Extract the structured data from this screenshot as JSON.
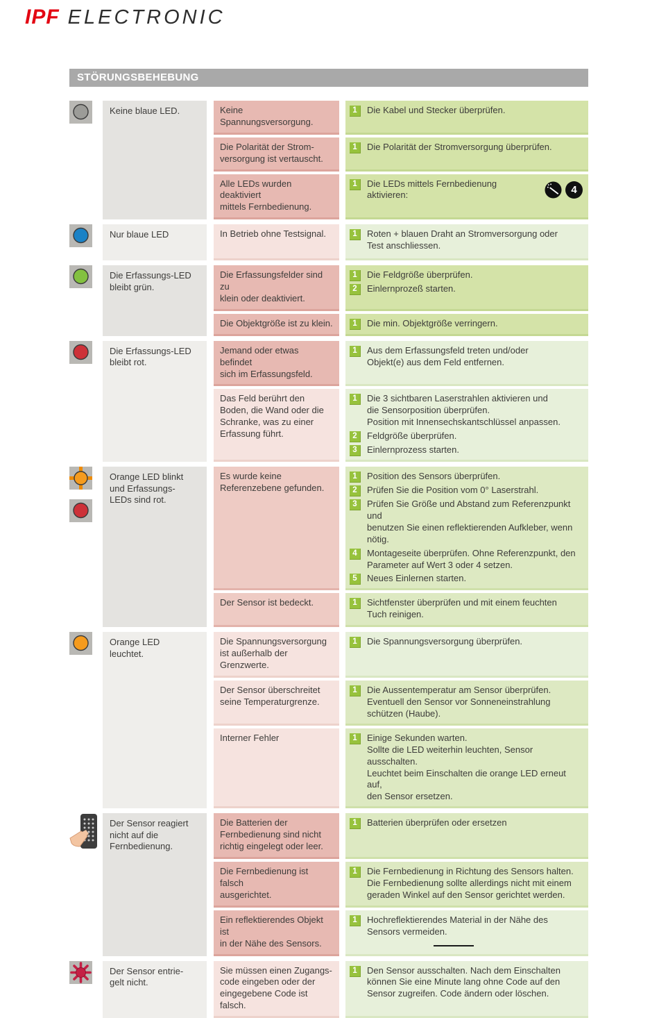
{
  "logo": {
    "brand": "IPF",
    "name": "ELECTRONIC"
  },
  "title": "STÖRUNGSBEHEBUNG",
  "icon_labels": {
    "number_badge": "4"
  },
  "colors": {
    "brand_red": "#e30613",
    "title_bar": "#a9a9a9",
    "step_badge_green": "#97c23d",
    "cause_pink": "#e7b9b2",
    "solution_green": "#d4e3a8"
  },
  "rows": [
    {
      "icons": [
        "gray-led"
      ],
      "symptom": "Keine blaue LED.",
      "items": [
        {
          "cause": "Keine Spannungsversorgung.",
          "cshade": "dark",
          "sshade": "dark",
          "steps": [
            {
              "n": "1",
              "text": "Die Kabel und Stecker überprüfen."
            }
          ]
        },
        {
          "cause": "Die Polarität der Strom-\nversorgung ist vertauscht.",
          "cshade": "dark",
          "sshade": "dark",
          "steps": [
            {
              "n": "1",
              "text": "Die Polarität der Stromversorgung überprüfen."
            }
          ]
        },
        {
          "cause": "Alle LEDs wurden deaktiviert\nmittels Fernbedienung.",
          "cshade": "dark",
          "sshade": "dark",
          "steps": [
            {
              "n": "1",
              "text": "Die LEDs mittels Fernbedienung aktivieren:",
              "icons": [
                "remote-wand",
                "number-4"
              ]
            }
          ]
        }
      ]
    },
    {
      "icons": [
        "blue-led"
      ],
      "symptom": "Nur blaue LED",
      "items": [
        {
          "cause": "In Betrieb ohne Testsignal.",
          "cshade": "light",
          "sshade": "light",
          "steps": [
            {
              "n": "1",
              "text": "Roten + blauen Draht an Stromversorgung oder\nTest anschliessen."
            }
          ]
        }
      ]
    },
    {
      "icons": [
        "green-led"
      ],
      "symptom": "Die Erfassungs-LED\nbleibt grün.",
      "items": [
        {
          "cause": "Die Erfassungsfelder sind zu\nklein oder deaktiviert.",
          "cshade": "dark",
          "sshade": "dark",
          "steps": [
            {
              "n": "1",
              "text": "Die Feldgröße überprüfen."
            },
            {
              "n": "2",
              "text": "Einlernprozeß starten."
            }
          ]
        },
        {
          "cause": "Die Objektgröße ist zu klein.",
          "cshade": "dark",
          "sshade": "dark",
          "steps": [
            {
              "n": "1",
              "text": "Die min. Objektgröße verringern."
            }
          ]
        }
      ]
    },
    {
      "icons": [
        "red-led"
      ],
      "symptom": "Die Erfassungs-LED\nbleibt rot.",
      "items": [
        {
          "cause": "Jemand oder etwas befindet\nsich im Erfassungsfeld.",
          "cshade": "dark",
          "sshade": "light",
          "steps": [
            {
              "n": "1",
              "text": "Aus dem Erfassungsfeld treten und/oder\nObjekt(e) aus dem Feld entfernen."
            }
          ]
        },
        {
          "cause": "Das Feld berührt den\nBoden, die Wand oder die\nSchranke, was zu einer\nErfassung führt.",
          "cshade": "light",
          "sshade": "light",
          "steps": [
            {
              "n": "1",
              "text": "Die 3 sichtbaren Laserstrahlen aktivieren und\ndie Sensorposition überprüfen.\nPosition mit Innensechskantschlüssel anpassen."
            },
            {
              "n": "2",
              "text": "Feldgröße überprüfen."
            },
            {
              "n": "3",
              "text": "Einlernprozess starten."
            }
          ]
        }
      ]
    },
    {
      "icons": [
        "orange-blink-led",
        "red-led"
      ],
      "symptom": "Orange LED blinkt\nund Erfassungs-\nLEDs sind rot.",
      "items": [
        {
          "cause": "Es wurde keine\nReferenzebene gefunden.",
          "cshade": "mid",
          "sshade": "mid",
          "steps": [
            {
              "n": "1",
              "text": "Position des Sensors überprüfen."
            },
            {
              "n": "2",
              "text": "Prüfen Sie die Position vom 0° Laserstrahl."
            },
            {
              "n": "3",
              "text": "Prüfen Sie Größe und Abstand zum Referenzpunkt und\nbenutzen Sie einen reflektierenden Aufkleber, wenn nötig."
            },
            {
              "n": "4",
              "text": "Montageseite überprüfen. Ohne Referenzpunkt, den\nParameter auf Wert 3 oder 4 setzen."
            },
            {
              "n": "5",
              "text": "Neues Einlernen starten."
            }
          ]
        },
        {
          "cause": "Der Sensor ist bedeckt.",
          "cshade": "mid",
          "sshade": "mid",
          "steps": [
            {
              "n": "1",
              "text": "Sichtfenster überprüfen und mit einem feuchten\nTuch reinigen."
            }
          ]
        }
      ]
    },
    {
      "icons": [
        "orange-led"
      ],
      "symptom": "Orange LED\nleuchtet.",
      "items": [
        {
          "cause": "Die Spannungsversorgung\nist außerhalb der Grenzwerte.",
          "cshade": "light",
          "sshade": "light",
          "steps": [
            {
              "n": "1",
              "text": "Die Spannungsversorgung überprüfen."
            }
          ]
        },
        {
          "cause": "Der Sensor überschreitet\nseine Temperaturgrenze.",
          "cshade": "light",
          "sshade": "mid",
          "steps": [
            {
              "n": "1",
              "text": "Die Aussentemperatur am Sensor überprüfen.\nEventuell den Sensor vor Sonneneinstrahlung\nschützen (Haube)."
            }
          ]
        },
        {
          "cause": "Interner Fehler",
          "cshade": "light",
          "sshade": "mid",
          "steps": [
            {
              "n": "1",
              "text": "Einige Sekunden warten.\nSollte die LED weiterhin leuchten, Sensor ausschalten.\nLeuchtet beim Einschalten die orange LED erneut auf,\nden Sensor ersetzen."
            }
          ]
        }
      ]
    },
    {
      "icons": [
        "remote-control"
      ],
      "symptom": "Der Sensor reagiert\nnicht auf die\nFernbedienung.",
      "items": [
        {
          "cause": "Die Batterien der\nFernbedienung sind nicht\nrichtig eingelegt oder leer.",
          "cshade": "dark",
          "sshade": "mid",
          "steps": [
            {
              "n": "1",
              "text": "Batterien überprüfen oder ersetzen"
            }
          ]
        },
        {
          "cause": "Die Fernbedienung ist falsch\nausgerichtet.",
          "cshade": "dark",
          "sshade": "mid",
          "steps": [
            {
              "n": "1",
              "text": "Die Fernbedienung in Richtung des Sensors halten.\nDie Fernbedienung sollte allerdings nicht mit einem\ngeraden Winkel auf den Sensor gerichtet werden."
            }
          ]
        },
        {
          "cause": "Ein reflektierendes Objekt ist\nin der Nähe des Sensors.",
          "cshade": "dark",
          "sshade": "light",
          "steps": [
            {
              "n": "1",
              "text": "Hochreflektierendes Material in der Nähe des\nSensors vermeiden."
            }
          ]
        }
      ]
    },
    {
      "icons": [
        "red-star"
      ],
      "symptom": "Der Sensor entrie-\ngelt nicht.",
      "items": [
        {
          "cause": "Sie müssen einen Zugangs-\ncode eingeben oder der\neingegebene Code ist falsch.",
          "cshade": "light",
          "sshade": "light",
          "steps": [
            {
              "n": "1",
              "text": "Den Sensor ausschalten. Nach dem Einschalten\nkönnen Sie eine Minute lang ohne Code auf den\nSensor zugreifen. Code ändern oder löschen."
            }
          ]
        }
      ]
    }
  ]
}
